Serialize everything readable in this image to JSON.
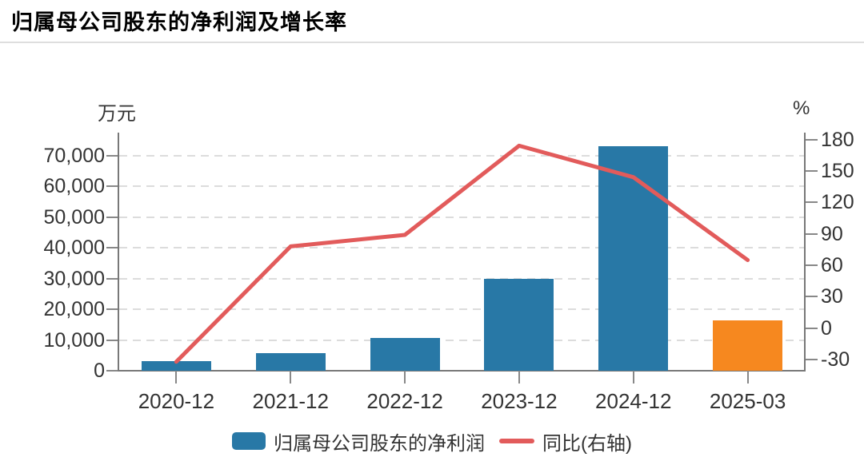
{
  "title": "归属母公司股东的净利润及增长率",
  "chart_data": {
    "type": "bar+line-dual-axis",
    "categories": [
      "2020-12",
      "2021-12",
      "2022-12",
      "2023-12",
      "2024-12",
      "2025-03"
    ],
    "series": [
      {
        "name": "归属母公司股东的净利润",
        "type": "bar",
        "axis": "left",
        "unit": "万元",
        "values": [
          3000,
          5600,
          10600,
          30000,
          73200,
          16500
        ],
        "bar_colors": [
          "#2878A6",
          "#2878A6",
          "#2878A6",
          "#2878A6",
          "#2878A6",
          "#F6881F"
        ]
      },
      {
        "name": "同比(右轴)",
        "type": "line",
        "axis": "right",
        "unit": "%",
        "values": [
          -32,
          78,
          89,
          174,
          144,
          65
        ],
        "color": "#E25B5B"
      }
    ],
    "left_axis": {
      "unit": "万元",
      "ticks": [
        0,
        10000,
        20000,
        30000,
        40000,
        50000,
        60000,
        70000
      ],
      "tick_labels": [
        "0",
        "10,000",
        "20,000",
        "30,000",
        "40,000",
        "50,000",
        "60,000",
        "70,000"
      ],
      "range": [
        0,
        77500
      ]
    },
    "right_axis": {
      "unit": "%",
      "ticks": [
        -30,
        0,
        30,
        60,
        90,
        120,
        150,
        180
      ],
      "tick_labels": [
        "-30",
        "0",
        "30",
        "60",
        "90",
        "120",
        "150",
        "180"
      ],
      "range": [
        -40.5,
        186.5
      ]
    },
    "grid": "horizontal-dashed",
    "legend_position": "bottom"
  },
  "legend": {
    "items": [
      {
        "label": "归属母公司股东的净利润",
        "swatch": "bar",
        "color": "#2878A6"
      },
      {
        "label": "同比(右轴)",
        "swatch": "line",
        "color": "#E25B5B"
      }
    ]
  },
  "colors": {
    "bar_blue": "#2878A6",
    "bar_orange": "#F6881F",
    "line_red": "#E25B5B",
    "axis_line": "#787878",
    "tick_text": "#333333",
    "gridline": "#dcdcdc",
    "title_text": "#000000",
    "divider": "#dedede"
  }
}
